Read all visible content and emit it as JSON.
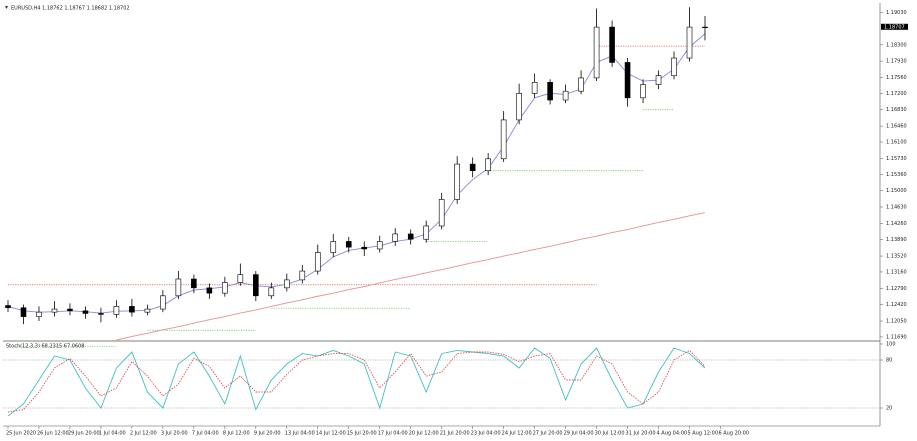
{
  "chart_data": [
    {
      "type": "candlestick",
      "title": "EURUSD,H4  1.18762 1.18767 1.18682 1.18702",
      "open": [
        1.124,
        1.1235,
        1.1215,
        1.1225,
        1.1232,
        1.1228,
        1.1222,
        1.122,
        1.1238,
        1.1225,
        1.1232,
        1.1262,
        1.13,
        1.128,
        1.1268,
        1.1292,
        1.131,
        1.1262,
        1.128,
        1.1298,
        1.1318,
        1.136,
        1.1385,
        1.1372,
        1.1368,
        1.1385,
        1.1402,
        1.139,
        1.142,
        1.148,
        1.156,
        1.1545,
        1.1572,
        1.166,
        1.172,
        1.1745,
        1.1705,
        1.1725,
        1.1755,
        1.187,
        1.179,
        1.171,
        1.174,
        1.176,
        1.18,
        1.187
      ],
      "high": [
        1.1252,
        1.1242,
        1.1238,
        1.125,
        1.1245,
        1.1238,
        1.1235,
        1.1252,
        1.1255,
        1.1242,
        1.1275,
        1.1318,
        1.131,
        1.129,
        1.1305,
        1.1335,
        1.1318,
        1.1292,
        1.1312,
        1.1332,
        1.1378,
        1.1402,
        1.1395,
        1.1385,
        1.1398,
        1.1415,
        1.1412,
        1.1432,
        1.1495,
        1.1578,
        1.1575,
        1.1585,
        1.168,
        1.1742,
        1.1765,
        1.1752,
        1.174,
        1.1772,
        1.1912,
        1.1885,
        1.18,
        1.1752,
        1.1772,
        1.1815,
        1.1915,
        1.1895
      ],
      "low": [
        1.1225,
        1.1198,
        1.1205,
        1.1215,
        1.1218,
        1.121,
        1.1202,
        1.1212,
        1.1215,
        1.1218,
        1.1225,
        1.1255,
        1.1268,
        1.1255,
        1.126,
        1.1285,
        1.125,
        1.1255,
        1.1272,
        1.129,
        1.131,
        1.135,
        1.136,
        1.1352,
        1.136,
        1.1375,
        1.1378,
        1.1382,
        1.1412,
        1.147,
        1.153,
        1.1535,
        1.1565,
        1.165,
        1.171,
        1.1695,
        1.1698,
        1.1718,
        1.1748,
        1.178,
        1.169,
        1.1698,
        1.173,
        1.1752,
        1.1792,
        1.184
      ],
      "close": [
        1.1235,
        1.1215,
        1.1225,
        1.1232,
        1.1228,
        1.1222,
        1.122,
        1.1238,
        1.1225,
        1.1232,
        1.1262,
        1.13,
        1.128,
        1.1268,
        1.1292,
        1.131,
        1.1262,
        1.128,
        1.1298,
        1.1318,
        1.136,
        1.1385,
        1.1372,
        1.1368,
        1.1385,
        1.1402,
        1.139,
        1.142,
        1.148,
        1.156,
        1.1545,
        1.1572,
        1.166,
        1.172,
        1.1745,
        1.1705,
        1.1725,
        1.1755,
        1.187,
        1.179,
        1.171,
        1.174,
        1.176,
        1.18,
        1.187,
        1.187
      ],
      "series": [
        {
          "color": "#8888dd",
          "style": "solid",
          "values": [
            1.1238,
            1.1228,
            1.1225,
            1.1226,
            1.1228,
            1.1226,
            1.1223,
            1.1227,
            1.1228,
            1.1229,
            1.124,
            1.1262,
            1.1275,
            1.1278,
            1.1282,
            1.1292,
            1.1285,
            1.1282,
            1.1288,
            1.13,
            1.1322,
            1.135,
            1.1365,
            1.137,
            1.1375,
            1.1385,
            1.139,
            1.1402,
            1.1435,
            1.149,
            1.1525,
            1.155,
            1.16,
            1.166,
            1.171,
            1.172,
            1.1718,
            1.173,
            1.179,
            1.1805,
            1.1765,
            1.1748,
            1.175,
            1.1775,
            1.1825,
            1.1855
          ]
        },
        {
          "color": "#e89090",
          "style": "solid",
          "values": [
            null,
            null,
            null,
            null,
            null,
            null,
            null,
            1.1162,
            1.117,
            1.1177,
            1.1185,
            1.1192,
            1.12,
            1.1208,
            1.1215,
            1.1223,
            1.123,
            1.1238,
            1.1246,
            1.1253,
            1.1261,
            1.1268,
            1.1276,
            1.1283,
            1.1291,
            1.1299,
            1.1306,
            1.1314,
            1.1321,
            1.1329,
            1.1337,
            1.1344,
            1.1352,
            1.1359,
            1.1367,
            1.1374,
            1.1382,
            1.139,
            1.1397,
            1.1405,
            1.1412,
            1.142,
            1.1428,
            1.1435,
            1.1443,
            1.145
          ]
        }
      ],
      "levels": [
        {
          "value": 1.1827,
          "color": "#e05050",
          "from": 38,
          "to": 45
        },
        {
          "value": 1.1287,
          "color": "#e05050",
          "from": 0,
          "to": 38
        },
        {
          "value": 1.1683,
          "color": "#50c050",
          "from": 41,
          "to": 43
        },
        {
          "value": 1.1545,
          "color": "#50c050",
          "from": 31,
          "to": 41
        },
        {
          "value": 1.1385,
          "color": "#50c050",
          "from": 27,
          "to": 31
        },
        {
          "value": 1.1234,
          "color": "#50c050",
          "from": 17,
          "to": 26
        },
        {
          "value": 1.1184,
          "color": "#50c050",
          "from": 9,
          "to": 16
        },
        {
          "value": 1.1148,
          "color": "#50c050",
          "from": 0,
          "to": 7
        }
      ],
      "last": {
        "value": 1.18707,
        "label": "1.18707"
      },
      "ylim": [
        1.1162,
        1.192
      ],
      "yticks": [
        {
          "value": 1.1903,
          "label": "1.19030"
        },
        {
          "value": 1.183,
          "label": "1.18300"
        },
        {
          "value": 1.1793,
          "label": "1.17930"
        },
        {
          "value": 1.1756,
          "label": "1.17560"
        },
        {
          "value": 1.172,
          "label": "1.17200"
        },
        {
          "value": 1.1683,
          "label": "1.16830"
        },
        {
          "value": 1.1646,
          "label": "1.16460"
        },
        {
          "value": 1.161,
          "label": "1.16100"
        },
        {
          "value": 1.1573,
          "label": "1.15730"
        },
        {
          "value": 1.1536,
          "label": "1.15360"
        },
        {
          "value": 1.15,
          "label": "1.15000"
        },
        {
          "value": 1.1463,
          "label": "1.14630"
        },
        {
          "value": 1.1426,
          "label": "1.14260"
        },
        {
          "value": 1.1389,
          "label": "1.13890"
        },
        {
          "value": 1.1352,
          "label": "1.13520"
        },
        {
          "value": 1.1316,
          "label": "1.13160"
        },
        {
          "value": 1.1279,
          "label": "1.12790"
        },
        {
          "value": 1.1242,
          "label": "1.12420"
        },
        {
          "value": 1.1205,
          "label": "1.12050"
        },
        {
          "value": 1.1169,
          "label": "1.11690"
        }
      ],
      "xlabels": [
        "25 Jun 2020",
        "26 Jun 12:00",
        "29 Jun 20:00",
        "1 Jul 04:00",
        "2 Jul 12:00",
        "3 Jul 20:00",
        "7 Jul 04:00",
        "8 Jul 12:00",
        "9 Jul 20:00",
        "13 Jul 04:00",
        "14 Jul 12:00",
        "15 Jul 20:00",
        "17 Jul 04:00",
        "20 Jul 12:00",
        "21 Jul 20:00",
        "23 Jul 04:00",
        "24 Jul 12:00",
        "27 Jul 20:00",
        "29 Jul 04:00",
        "30 Jul 12:00",
        "31 Jul 20:00",
        "4 Aug 04:00",
        "5 Aug 12:00",
        "6 Aug 20:00"
      ]
    },
    {
      "type": "line",
      "title": "Stoch(12,3,3) 68.2315 67.0608",
      "series": [
        {
          "color": "#40c0c0",
          "style": "solid",
          "values": [
            10,
            25,
            55,
            85,
            80,
            45,
            20,
            70,
            90,
            40,
            20,
            75,
            90,
            60,
            25,
            85,
            18,
            55,
            75,
            88,
            85,
            92,
            85,
            75,
            20,
            90,
            85,
            40,
            88,
            92,
            90,
            88,
            85,
            70,
            95,
            82,
            30,
            75,
            95,
            55,
            20,
            25,
            65,
            95,
            88,
            70
          ]
        },
        {
          "color": "#e05050",
          "style": "dotted",
          "values": [
            15,
            18,
            40,
            70,
            82,
            60,
            35,
            45,
            78,
            60,
            35,
            50,
            82,
            72,
            45,
            60,
            40,
            40,
            62,
            80,
            85,
            88,
            88,
            80,
            45,
            65,
            88,
            60,
            65,
            88,
            90,
            90,
            87,
            78,
            85,
            88,
            55,
            55,
            85,
            75,
            40,
            25,
            40,
            80,
            92,
            72
          ]
        }
      ],
      "levels": [
        {
          "value": 80,
          "color": "#aaaaaa"
        },
        {
          "value": 20,
          "color": "#aaaaaa"
        }
      ],
      "ylim": [
        0,
        100
      ],
      "yticks": [
        100,
        80,
        20
      ]
    }
  ]
}
